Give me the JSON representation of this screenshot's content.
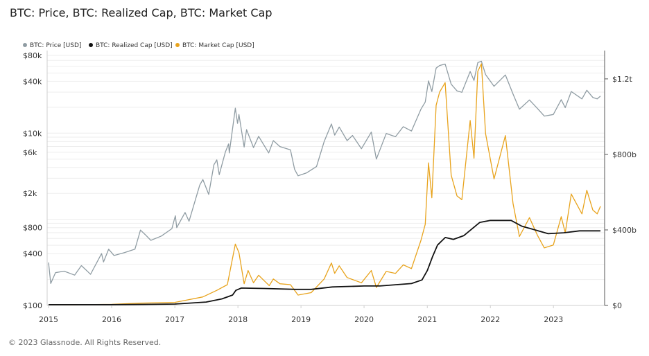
{
  "footer": "© 2023 Glassnode. All Rights Reserved.",
  "chart_data": {
    "type": "line",
    "title": "BTC: Price, BTC: Realized Cap, BTC: Market Cap",
    "xlabel": "",
    "ylabel_left": "",
    "ylabel_right": "",
    "legend_position": "top-left",
    "grid": true,
    "x_ticks": [
      "2015",
      "2016",
      "2017",
      "2018",
      "2019",
      "2020",
      "2021",
      "2022",
      "2023"
    ],
    "y_left_scale": "log",
    "y_left_ticks": [
      {
        "value": 100,
        "label": "$100"
      },
      {
        "value": 400,
        "label": "$400"
      },
      {
        "value": 800,
        "label": "$800"
      },
      {
        "value": 2000,
        "label": "$2k"
      },
      {
        "value": 6000,
        "label": "$6k"
      },
      {
        "value": 10000,
        "label": "$10k"
      },
      {
        "value": 40000,
        "label": "$40k"
      },
      {
        "value": 80000,
        "label": "$80k"
      }
    ],
    "y_left_range": [
      100,
      80000
    ],
    "y_right_scale": "linear",
    "y_right_ticks": [
      {
        "value": 0,
        "label": "$0"
      },
      {
        "value": 400000000000,
        "label": "$400b"
      },
      {
        "value": 800000000000,
        "label": "$800b"
      },
      {
        "value": 1200000000000,
        "label": "$1.2t"
      }
    ],
    "y_right_range": [
      0,
      1350000000000
    ],
    "series": [
      {
        "name": "BTC: Price [USD]",
        "color": "#8f9ca3",
        "axis": "left",
        "points": [
          [
            "2015-01-01",
            315
          ],
          [
            "2015-01-14",
            180
          ],
          [
            "2015-02-10",
            240
          ],
          [
            "2015-04-01",
            250
          ],
          [
            "2015-06-01",
            225
          ],
          [
            "2015-07-10",
            290
          ],
          [
            "2015-09-01",
            230
          ],
          [
            "2015-11-04",
            400
          ],
          [
            "2015-11-15",
            320
          ],
          [
            "2015-12-15",
            450
          ],
          [
            "2016-01-15",
            380
          ],
          [
            "2016-03-15",
            410
          ],
          [
            "2016-05-15",
            450
          ],
          [
            "2016-06-16",
            750
          ],
          [
            "2016-07-15",
            660
          ],
          [
            "2016-08-15",
            570
          ],
          [
            "2016-10-15",
            640
          ],
          [
            "2016-12-15",
            780
          ],
          [
            "2017-01-04",
            1100
          ],
          [
            "2017-01-12",
            800
          ],
          [
            "2017-03-01",
            1200
          ],
          [
            "2017-03-24",
            950
          ],
          [
            "2017-05-25",
            2500
          ],
          [
            "2017-06-12",
            2900
          ],
          [
            "2017-07-16",
            1950
          ],
          [
            "2017-08-15",
            4300
          ],
          [
            "2017-09-01",
            4900
          ],
          [
            "2017-09-15",
            3300
          ],
          [
            "2017-10-20",
            6000
          ],
          [
            "2017-11-08",
            7500
          ],
          [
            "2017-11-12",
            5900
          ],
          [
            "2017-12-17",
            19500
          ],
          [
            "2017-12-30",
            13000
          ],
          [
            "2018-01-07",
            16500
          ],
          [
            "2018-02-06",
            6900
          ],
          [
            "2018-02-20",
            11000
          ],
          [
            "2018-04-01",
            6800
          ],
          [
            "2018-05-01",
            9200
          ],
          [
            "2018-06-28",
            5900
          ],
          [
            "2018-07-25",
            8200
          ],
          [
            "2018-09-01",
            7000
          ],
          [
            "2018-11-01",
            6400
          ],
          [
            "2018-11-25",
            3800
          ],
          [
            "2018-12-15",
            3200
          ],
          [
            "2019-02-01",
            3450
          ],
          [
            "2019-04-01",
            4100
          ],
          [
            "2019-05-15",
            8000
          ],
          [
            "2019-06-26",
            12800
          ],
          [
            "2019-07-15",
            9500
          ],
          [
            "2019-08-10",
            11800
          ],
          [
            "2019-09-25",
            8200
          ],
          [
            "2019-10-26",
            9400
          ],
          [
            "2019-12-17",
            6600
          ],
          [
            "2020-02-12",
            10300
          ],
          [
            "2020-03-12",
            5000
          ],
          [
            "2020-05-08",
            9900
          ],
          [
            "2020-07-01",
            9100
          ],
          [
            "2020-08-15",
            11900
          ],
          [
            "2020-10-01",
            10600
          ],
          [
            "2020-11-25",
            19000
          ],
          [
            "2020-12-20",
            23000
          ],
          [
            "2021-01-08",
            40500
          ],
          [
            "2021-01-27",
            30500
          ],
          [
            "2021-02-21",
            57000
          ],
          [
            "2021-03-13",
            61000
          ],
          [
            "2021-04-14",
            63500
          ],
          [
            "2021-05-19",
            37000
          ],
          [
            "2021-06-22",
            31000
          ],
          [
            "2021-07-20",
            29800
          ],
          [
            "2021-09-06",
            52000
          ],
          [
            "2021-09-28",
            41000
          ],
          [
            "2021-10-20",
            66000
          ],
          [
            "2021-11-10",
            68500
          ],
          [
            "2021-12-04",
            48000
          ],
          [
            "2022-01-22",
            35000
          ],
          [
            "2022-03-29",
            47500
          ],
          [
            "2022-05-12",
            28500
          ],
          [
            "2022-06-18",
            19000
          ],
          [
            "2022-08-15",
            24300
          ],
          [
            "2022-10-01",
            19300
          ],
          [
            "2022-11-09",
            15800
          ],
          [
            "2022-12-31",
            16500
          ],
          [
            "2023-02-15",
            24500
          ],
          [
            "2023-03-10",
            19800
          ],
          [
            "2023-04-14",
            30500
          ],
          [
            "2023-06-15",
            25000
          ],
          [
            "2023-07-13",
            31500
          ],
          [
            "2023-08-17",
            26000
          ],
          [
            "2023-09-11",
            25000
          ],
          [
            "2023-09-30",
            27000
          ]
        ]
      },
      {
        "name": "BTC: Realized Cap [USD]",
        "color": "#111111",
        "axis": "right",
        "points": [
          [
            "2015-01-01",
            4000000000
          ],
          [
            "2016-01-01",
            4200000000
          ],
          [
            "2016-07-01",
            5500000000
          ],
          [
            "2017-01-01",
            7500000000
          ],
          [
            "2017-07-01",
            18000000000
          ],
          [
            "2017-10-01",
            35000000000
          ],
          [
            "2017-12-01",
            55000000000
          ],
          [
            "2017-12-20",
            80000000000
          ],
          [
            "2018-01-20",
            92000000000
          ],
          [
            "2018-06-01",
            90000000000
          ],
          [
            "2018-12-01",
            85000000000
          ],
          [
            "2019-03-01",
            85000000000
          ],
          [
            "2019-07-01",
            98000000000
          ],
          [
            "2020-01-01",
            103000000000
          ],
          [
            "2020-04-01",
            103000000000
          ],
          [
            "2020-10-01",
            116000000000
          ],
          [
            "2020-12-01",
            135000000000
          ],
          [
            "2021-01-01",
            185000000000
          ],
          [
            "2021-02-01",
            260000000000
          ],
          [
            "2021-03-01",
            320000000000
          ],
          [
            "2021-04-15",
            360000000000
          ],
          [
            "2021-06-01",
            350000000000
          ],
          [
            "2021-08-01",
            370000000000
          ],
          [
            "2021-11-01",
            440000000000
          ],
          [
            "2022-01-01",
            450000000000
          ],
          [
            "2022-05-01",
            450000000000
          ],
          [
            "2022-07-01",
            420000000000
          ],
          [
            "2022-12-01",
            380000000000
          ],
          [
            "2023-03-01",
            385000000000
          ],
          [
            "2023-06-01",
            395000000000
          ],
          [
            "2023-09-30",
            395000000000
          ]
        ]
      },
      {
        "name": "BTC: Market Cap [USD]",
        "color": "#e8a31c",
        "axis": "right",
        "points": [
          [
            "2015-01-01",
            4300000000
          ],
          [
            "2015-06-01",
            3500000000
          ],
          [
            "2016-01-01",
            6000000000
          ],
          [
            "2016-06-16",
            12000000000
          ],
          [
            "2017-01-01",
            16000000000
          ],
          [
            "2017-06-12",
            45000000000
          ],
          [
            "2017-09-01",
            80000000000
          ],
          [
            "2017-11-01",
            110000000000
          ],
          [
            "2017-12-17",
            325000000000
          ],
          [
            "2018-01-07",
            280000000000
          ],
          [
            "2018-02-06",
            115000000000
          ],
          [
            "2018-03-01",
            185000000000
          ],
          [
            "2018-04-01",
            120000000000
          ],
          [
            "2018-05-01",
            160000000000
          ],
          [
            "2018-07-01",
            105000000000
          ],
          [
            "2018-07-25",
            140000000000
          ],
          [
            "2018-09-01",
            115000000000
          ],
          [
            "2018-11-01",
            110000000000
          ],
          [
            "2018-12-15",
            55000000000
          ],
          [
            "2019-03-01",
            68000000000
          ],
          [
            "2019-05-15",
            140000000000
          ],
          [
            "2019-06-26",
            225000000000
          ],
          [
            "2019-07-15",
            170000000000
          ],
          [
            "2019-08-10",
            210000000000
          ],
          [
            "2019-09-25",
            148000000000
          ],
          [
            "2019-12-17",
            120000000000
          ],
          [
            "2020-02-12",
            185000000000
          ],
          [
            "2020-03-12",
            95000000000
          ],
          [
            "2020-05-08",
            180000000000
          ],
          [
            "2020-07-01",
            170000000000
          ],
          [
            "2020-08-15",
            215000000000
          ],
          [
            "2020-10-01",
            195000000000
          ],
          [
            "2020-11-25",
            345000000000
          ],
          [
            "2020-12-20",
            430000000000
          ],
          [
            "2021-01-08",
            755000000000
          ],
          [
            "2021-01-27",
            570000000000
          ],
          [
            "2021-02-21",
            1060000000000
          ],
          [
            "2021-03-13",
            1130000000000
          ],
          [
            "2021-04-14",
            1180000000000
          ],
          [
            "2021-05-19",
            690000000000
          ],
          [
            "2021-06-22",
            580000000000
          ],
          [
            "2021-07-20",
            560000000000
          ],
          [
            "2021-09-06",
            980000000000
          ],
          [
            "2021-09-28",
            780000000000
          ],
          [
            "2021-10-20",
            1240000000000
          ],
          [
            "2021-11-10",
            1280000000000
          ],
          [
            "2021-12-04",
            910000000000
          ],
          [
            "2022-01-22",
            670000000000
          ],
          [
            "2022-03-29",
            900000000000
          ],
          [
            "2022-05-12",
            540000000000
          ],
          [
            "2022-06-18",
            365000000000
          ],
          [
            "2022-08-15",
            465000000000
          ],
          [
            "2022-10-01",
            370000000000
          ],
          [
            "2022-11-09",
            305000000000
          ],
          [
            "2022-12-31",
            320000000000
          ],
          [
            "2023-02-15",
            470000000000
          ],
          [
            "2023-03-10",
            385000000000
          ],
          [
            "2023-04-14",
            590000000000
          ],
          [
            "2023-06-15",
            485000000000
          ],
          [
            "2023-07-13",
            610000000000
          ],
          [
            "2023-08-17",
            505000000000
          ],
          [
            "2023-09-11",
            485000000000
          ],
          [
            "2023-09-30",
            525000000000
          ]
        ]
      }
    ]
  }
}
